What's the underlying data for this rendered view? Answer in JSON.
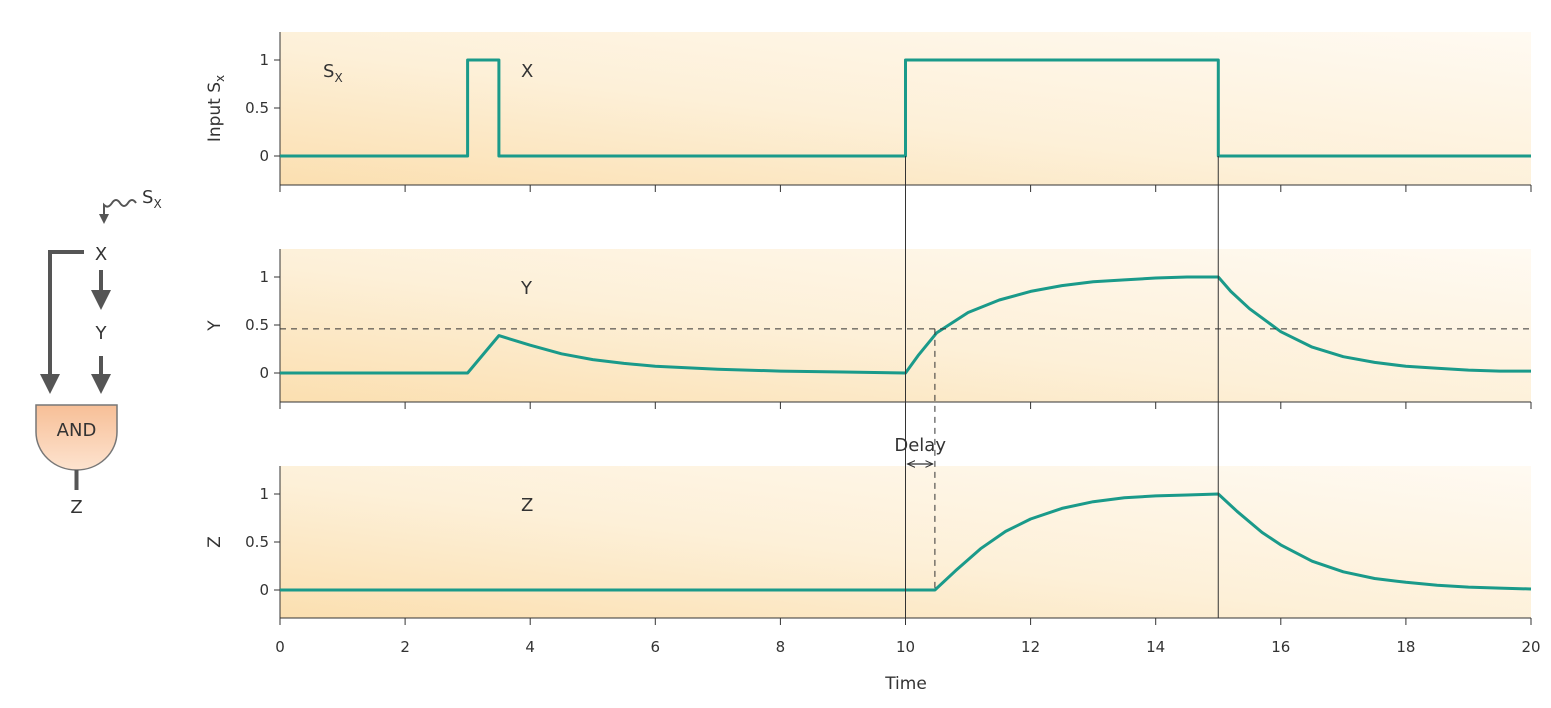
{
  "chart_data": {
    "type": "line",
    "xlabel": "Time",
    "xlim": [
      0,
      20
    ],
    "x_ticks": [
      "0",
      "2",
      "4",
      "6",
      "8",
      "10",
      "12",
      "14",
      "16",
      "18",
      "20"
    ],
    "y_ticks": [
      "0",
      "0.5",
      "1"
    ],
    "ylim": [
      -0.3,
      1.3
    ],
    "grid": false,
    "threshold": 0.46,
    "delay_label": "Delay",
    "series_color": "#1a9a8a",
    "panels": [
      {
        "ylabel_main": "Input S",
        "ylabel_sub": "x",
        "label_main": "X",
        "extra_label_main": "S",
        "extra_label_sub": "X",
        "series": {
          "x": [
            0,
            3,
            3,
            3.5,
            3.5,
            10,
            10,
            15,
            15,
            20
          ],
          "y": [
            0,
            0,
            1,
            1,
            0,
            0,
            1,
            1,
            0,
            0
          ]
        }
      },
      {
        "ylabel_main": "Y",
        "label_main": "Y",
        "series": {
          "x": [
            0,
            3.0,
            3.5,
            4.0,
            4.5,
            5.0,
            5.5,
            6.0,
            7.0,
            8.0,
            9.0,
            10.0,
            10.2,
            10.5,
            11.0,
            11.5,
            12.0,
            12.5,
            13.0,
            13.5,
            14.0,
            14.5,
            15.0,
            15.2,
            15.5,
            16.0,
            16.5,
            17.0,
            17.5,
            18.0,
            18.5,
            19.0,
            19.5,
            20.0
          ],
          "y": [
            0,
            0,
            0.39,
            0.29,
            0.2,
            0.14,
            0.1,
            0.07,
            0.04,
            0.02,
            0.01,
            0.0,
            0.18,
            0.42,
            0.63,
            0.76,
            0.85,
            0.91,
            0.95,
            0.97,
            0.99,
            1.0,
            1.0,
            0.85,
            0.67,
            0.43,
            0.27,
            0.17,
            0.11,
            0.07,
            0.05,
            0.03,
            0.02,
            0.02
          ]
        }
      },
      {
        "ylabel_main": "Z",
        "label_main": "Z",
        "series": {
          "x": [
            0,
            10.47,
            10.8,
            11.2,
            11.6,
            12.0,
            12.5,
            13.0,
            13.5,
            14.0,
            14.5,
            15.0,
            15.3,
            15.7,
            16.0,
            16.5,
            17.0,
            17.5,
            18.0,
            18.5,
            19.0,
            19.5,
            20.0
          ],
          "y": [
            0,
            0,
            0.2,
            0.43,
            0.61,
            0.74,
            0.85,
            0.92,
            0.96,
            0.98,
            0.99,
            1.0,
            0.82,
            0.6,
            0.47,
            0.3,
            0.19,
            0.12,
            0.08,
            0.05,
            0.03,
            0.02,
            0.01
          ]
        }
      }
    ],
    "markers": [
      10,
      15
    ],
    "delay_x": 10.47
  },
  "diagram": {
    "input_main": "S",
    "input_sub": "X",
    "node_x": "X",
    "node_y": "Y",
    "gate": "AND",
    "node_z": "Z"
  }
}
